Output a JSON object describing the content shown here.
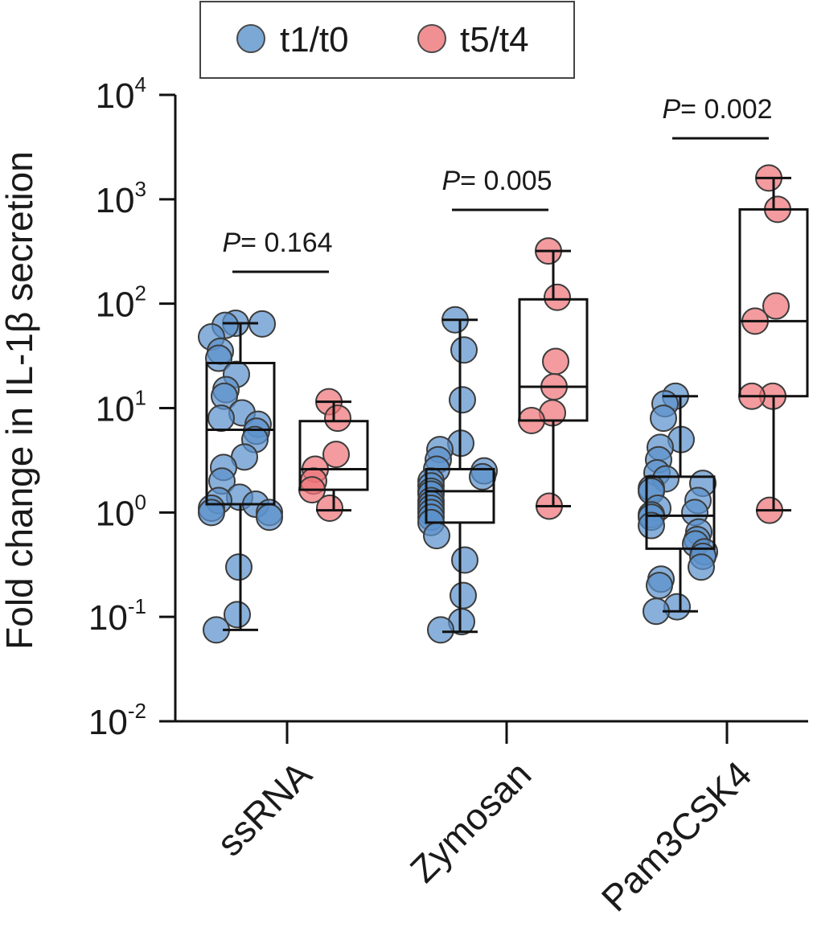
{
  "chart_data": {
    "type": "box",
    "y_scale": "log",
    "ylabel_prefix": "Fold change in IL-1",
    "ylabel_symbol": "β",
    "ylabel_suffix": " secretion",
    "ylim": [
      0.01,
      10000
    ],
    "y_ticks": [
      {
        "base": "10",
        "exp": "4",
        "value": 10000
      },
      {
        "base": "10",
        "exp": "3",
        "value": 1000
      },
      {
        "base": "10",
        "exp": "2",
        "value": 100
      },
      {
        "base": "10",
        "exp": "1",
        "value": 10
      },
      {
        "base": "10",
        "exp": "0",
        "value": 1
      },
      {
        "base": "10",
        "exp": "-1",
        "value": 0.1
      },
      {
        "base": "10",
        "exp": "-2",
        "value": 0.01
      }
    ],
    "categories": [
      "ssRNA",
      "Zymosan",
      "Pam3CSK4"
    ],
    "series": [
      {
        "name": "t1/t0",
        "color": "#5b92cc"
      },
      {
        "name": "t5/t4",
        "color": "#ee7478"
      }
    ],
    "groups": [
      {
        "category": "ssRNA",
        "p_label": "P",
        "p_value": "= 0.164",
        "boxes": [
          {
            "series": "t1/t0",
            "min": 0.075,
            "q1": 1.2,
            "median": 6.2,
            "q3": 27,
            "max": 65,
            "points": [
              65,
              62,
              64,
              48,
              35,
              30,
              21,
              15,
              13,
              9,
              8,
              7,
              6,
              5,
              3.4,
              2.7,
              2.0,
              1.4,
              1.3,
              1.2,
              1.1,
              1.0,
              1.0,
              0.9,
              0.3,
              0.105,
              0.075
            ]
          },
          {
            "series": "t5/t4",
            "min": 1.05,
            "q1": 1.65,
            "median": 2.6,
            "q3": 7.5,
            "max": 11.5,
            "points": [
              11.5,
              8,
              3.6,
              2.6,
              2.0,
              1.65,
              1.1
            ]
          }
        ]
      },
      {
        "category": "Zymosan",
        "p_label": "P",
        "p_value": "= 0.005",
        "boxes": [
          {
            "series": "t1/t0",
            "min": 0.072,
            "q1": 0.8,
            "median": 1.6,
            "q3": 2.6,
            "max": 70,
            "points": [
              70,
              36,
              12,
              4.6,
              4.0,
              3.2,
              2.6,
              2.5,
              2.2,
              2.0,
              1.8,
              1.6,
              1.5,
              1.3,
              1.2,
              1.1,
              1.0,
              0.9,
              0.8,
              0.6,
              0.35,
              0.16,
              0.09,
              0.075
            ]
          },
          {
            "series": "t5/t4",
            "min": 1.15,
            "q1": 7.6,
            "median": 16,
            "q3": 110,
            "max": 320,
            "points": [
              320,
              115,
              28,
              16,
              9,
              7.6,
              1.15
            ]
          }
        ]
      },
      {
        "category": "Pam3CSK4",
        "p_label": "P",
        "p_value": "= 0.002",
        "boxes": [
          {
            "series": "t1/t0",
            "min": 0.113,
            "q1": 0.45,
            "median": 0.93,
            "q3": 2.2,
            "max": 13,
            "points": [
              13,
              11,
              8,
              5,
              4.2,
              3.2,
              2.4,
              2.1,
              1.9,
              1.7,
              1.6,
              1.3,
              1.1,
              1.0,
              0.95,
              0.9,
              0.75,
              0.65,
              0.55,
              0.5,
              0.42,
              0.38,
              0.3,
              0.23,
              0.2,
              0.125,
              0.113
            ]
          },
          {
            "series": "t5/t4",
            "min": 1.05,
            "q1": 13,
            "median": 68,
            "q3": 800,
            "max": 1600,
            "points": [
              1600,
              800,
              95,
              68,
              13,
              13,
              1.05
            ]
          }
        ]
      }
    ],
    "legend_position": "top"
  }
}
